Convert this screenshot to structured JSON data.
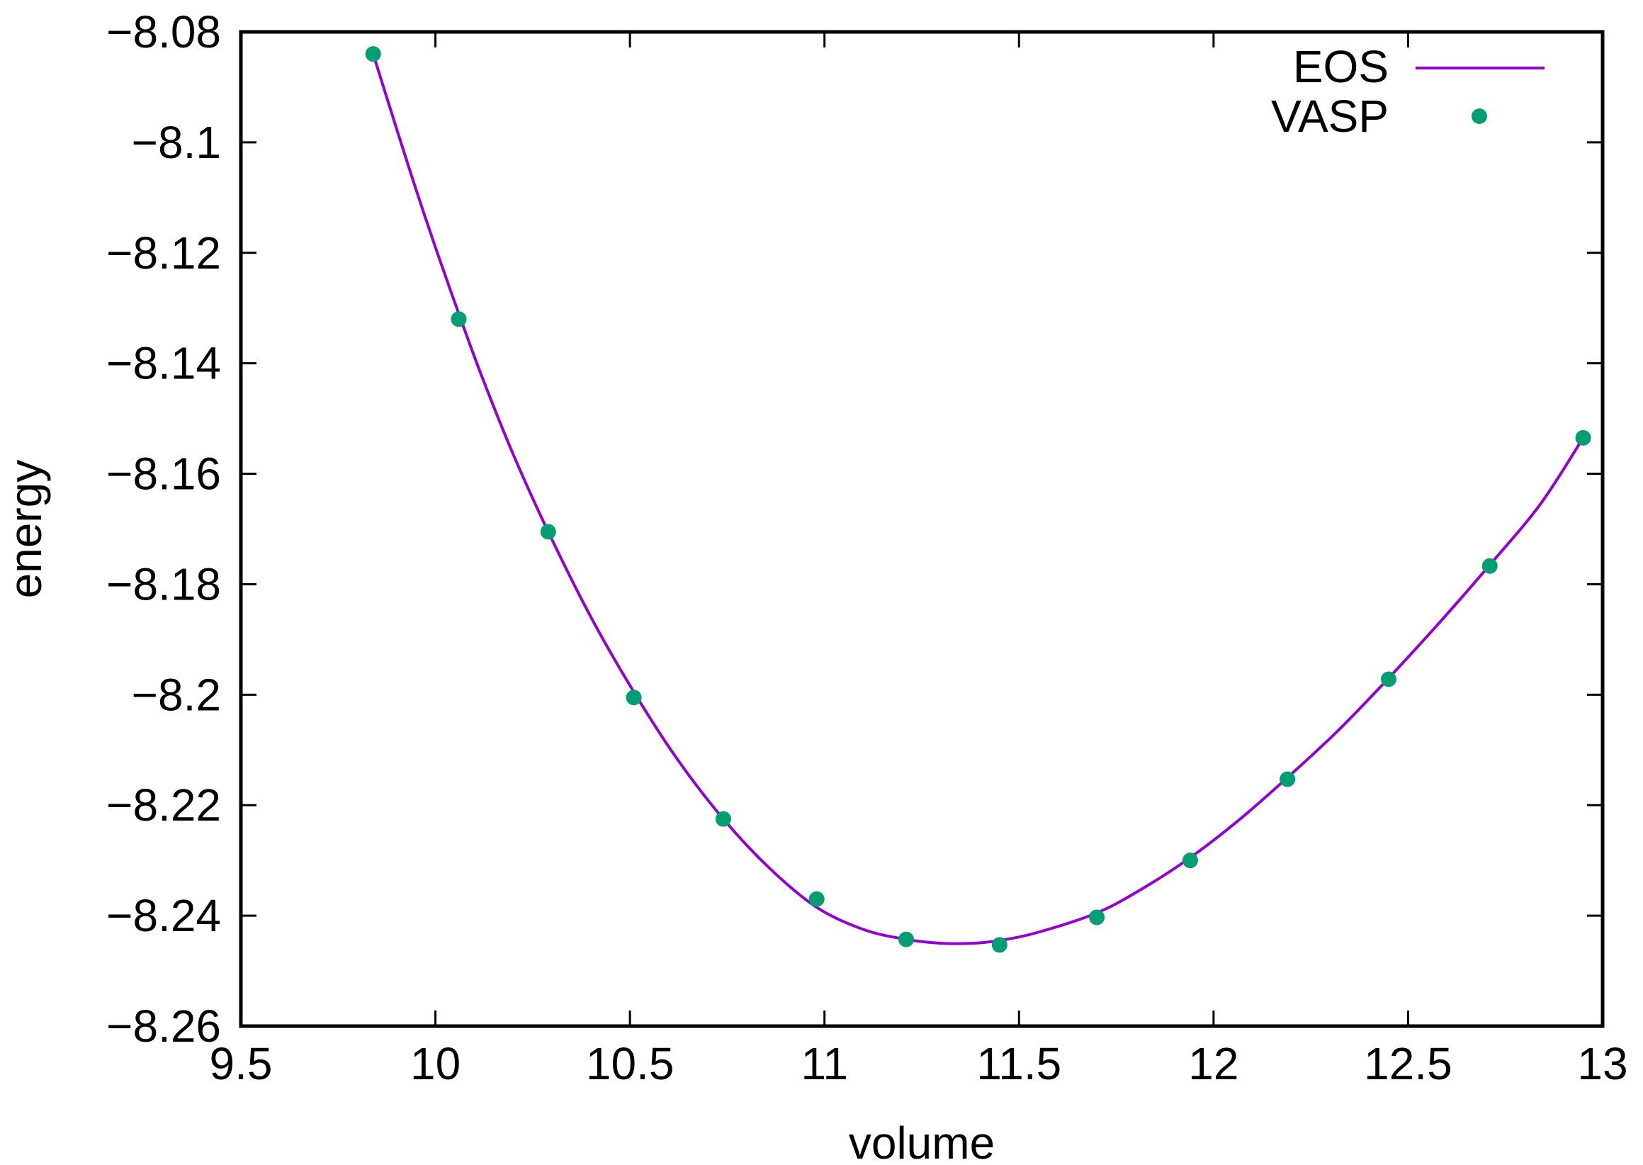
{
  "chart_data": {
    "type": "line",
    "title": "",
    "xlabel": "volume",
    "ylabel": "energy",
    "xlim": [
      9.5,
      13
    ],
    "ylim": [
      -8.26,
      -8.08
    ],
    "x_ticks": [
      9.5,
      10,
      10.5,
      11,
      11.5,
      12,
      12.5,
      13
    ],
    "x_tick_labels": [
      "9.5",
      "10",
      "10.5",
      "11",
      "11.5",
      "12",
      "12.5",
      "13"
    ],
    "y_ticks": [
      -8.08,
      -8.1,
      -8.12,
      -8.14,
      -8.16,
      -8.18,
      -8.2,
      -8.22,
      -8.24,
      -8.26
    ],
    "y_tick_labels": [
      "−8.08",
      "−8.1",
      "−8.12",
      "−8.14",
      "−8.16",
      "−8.18",
      "−8.2",
      "−8.22",
      "−8.24",
      "−8.26"
    ],
    "grid": false,
    "legend_position": "top-right",
    "series": [
      {
        "name": "EOS",
        "kind": "line",
        "color": "#9400d3",
        "x": [
          9.84,
          9.9,
          9.95,
          10.0,
          10.06,
          10.12,
          10.2,
          10.29,
          10.4,
          10.51,
          10.62,
          10.74,
          10.86,
          10.98,
          11.1,
          11.21,
          11.3,
          11.38,
          11.45,
          11.55,
          11.7,
          11.82,
          11.94,
          12.06,
          12.19,
          12.32,
          12.45,
          12.58,
          12.71,
          12.84,
          12.95
        ],
        "y": [
          -8.084,
          -8.0975,
          -8.1085,
          -8.119,
          -8.131,
          -8.1425,
          -8.1565,
          -8.1705,
          -8.186,
          -8.1995,
          -8.2115,
          -8.2225,
          -8.2315,
          -8.2385,
          -8.2425,
          -8.2443,
          -8.245,
          -8.245,
          -8.2445,
          -8.243,
          -8.2395,
          -8.235,
          -8.2295,
          -8.223,
          -8.215,
          -8.2065,
          -8.197,
          -8.187,
          -8.1765,
          -8.1655,
          -8.1535
        ]
      },
      {
        "name": "VASP",
        "kind": "scatter",
        "color": "#009e73",
        "x": [
          9.84,
          10.06,
          10.29,
          10.51,
          10.74,
          10.98,
          11.21,
          11.45,
          11.7,
          11.94,
          12.19,
          12.45,
          12.71,
          12.95
        ],
        "y": [
          -8.084,
          -8.132,
          -8.1705,
          -8.2005,
          -8.2225,
          -8.237,
          -8.2443,
          -8.2453,
          -8.2403,
          -8.23,
          -8.2153,
          -8.1972,
          -8.1767,
          -8.1535
        ]
      }
    ]
  }
}
